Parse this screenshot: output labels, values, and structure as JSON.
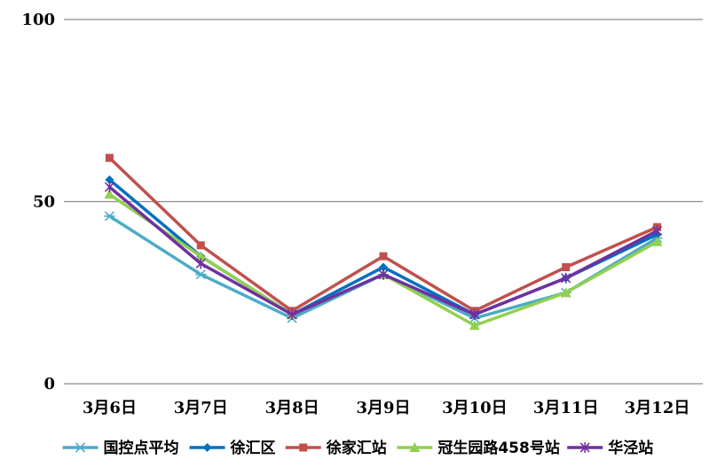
{
  "chart_data": {
    "type": "line",
    "categories": [
      "3月6日",
      "3月7日",
      "3月8日",
      "3月9日",
      "3月10日",
      "3月11日",
      "3月12日"
    ],
    "ylim": [
      0,
      100
    ],
    "yticks": [
      0,
      50,
      100
    ],
    "grid": true,
    "legend_position": "bottom",
    "series": [
      {
        "name": "国控点平均",
        "color": "#4BACC6",
        "marker": "asterisk",
        "values": [
          46,
          30,
          18,
          30,
          18,
          25,
          40
        ]
      },
      {
        "name": "徐汇区",
        "color": "#0070C0",
        "marker": "diamond",
        "values": [
          56,
          35,
          19,
          32,
          19,
          29,
          41
        ]
      },
      {
        "name": "徐家汇站",
        "color": "#C0504D",
        "marker": "square",
        "values": [
          62,
          38,
          20,
          35,
          20,
          32,
          43
        ]
      },
      {
        "name": "冠生园路458号站",
        "color": "#92D050",
        "marker": "triangle",
        "values": [
          52,
          35,
          19,
          30,
          16,
          25,
          39
        ]
      },
      {
        "name": "华泾站",
        "color": "#7030A0",
        "marker": "star",
        "values": [
          54,
          33,
          19,
          30,
          19,
          29,
          42
        ]
      }
    ]
  }
}
